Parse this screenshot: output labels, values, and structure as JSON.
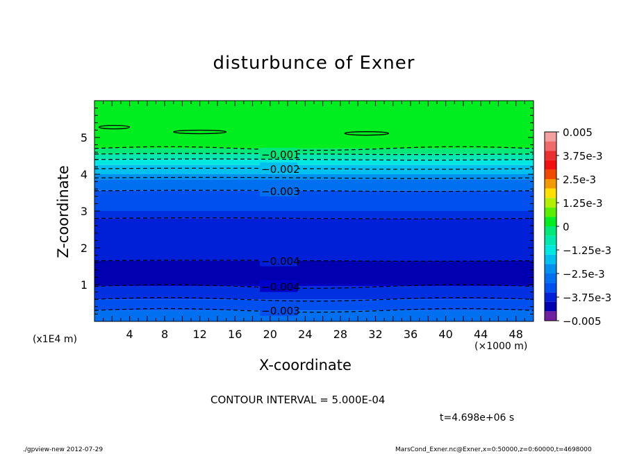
{
  "chart_data": {
    "type": "heatmap",
    "title": "disturbunce of Exner",
    "xlabel": "X-coordinate",
    "ylabel": "Z-coordinate",
    "x_unit": "(×1000 m)",
    "y_unit": "(x1E4 m)",
    "x_ticks": [
      "4",
      "8",
      "12",
      "16",
      "20",
      "24",
      "28",
      "32",
      "36",
      "40",
      "44",
      "48"
    ],
    "y_ticks": [
      "1",
      "2",
      "3",
      "4",
      "5"
    ],
    "xlim": [
      0,
      50
    ],
    "ylim": [
      0,
      6
    ],
    "colorbar": {
      "labels": [
        "0.005",
        "3.75e-3",
        "2.5e-3",
        "1.25e-3",
        "0",
        "−1.25e-3",
        "−2.5e-3",
        "−3.75e-3",
        "−0.005"
      ],
      "range": [
        -0.005,
        0.005
      ],
      "levels": [
        {
          "lo": 0.0045,
          "hi": 0.005,
          "color": "#f4a0a0"
        },
        {
          "lo": 0.004,
          "hi": 0.0045,
          "color": "#f06a6a"
        },
        {
          "lo": 0.0035,
          "hi": 0.004,
          "color": "#e83030"
        },
        {
          "lo": 0.003,
          "hi": 0.0035,
          "color": "#f01010"
        },
        {
          "lo": 0.0025,
          "hi": 0.003,
          "color": "#f04a00"
        },
        {
          "lo": 0.002,
          "hi": 0.0025,
          "color": "#f29a00"
        },
        {
          "lo": 0.0015,
          "hi": 0.002,
          "color": "#ffe000"
        },
        {
          "lo": 0.001,
          "hi": 0.0015,
          "color": "#b4ee00"
        },
        {
          "lo": 0.0005,
          "hi": 0.001,
          "color": "#5aee00"
        },
        {
          "lo": 0.0,
          "hi": 0.0005,
          "color": "#00ee20"
        },
        {
          "lo": -0.0005,
          "hi": 0.0,
          "color": "#00e878"
        },
        {
          "lo": -0.001,
          "hi": -0.0005,
          "color": "#00e8b0"
        },
        {
          "lo": -0.0015,
          "hi": -0.001,
          "color": "#00e8e0"
        },
        {
          "lo": -0.002,
          "hi": -0.0015,
          "color": "#00c0f0"
        },
        {
          "lo": -0.0025,
          "hi": -0.002,
          "color": "#0090f0"
        },
        {
          "lo": -0.003,
          "hi": -0.0025,
          "color": "#0070f0"
        },
        {
          "lo": -0.0035,
          "hi": -0.003,
          "color": "#0050f0"
        },
        {
          "lo": -0.004,
          "hi": -0.0035,
          "color": "#0020d8"
        },
        {
          "lo": -0.0045,
          "hi": -0.004,
          "color": "#0000b0"
        },
        {
          "lo": -0.005,
          "hi": -0.0045,
          "color": "#7020a0"
        }
      ]
    },
    "bands": [
      {
        "z0": 4.7,
        "z1": 6.0,
        "color": "#00ee20"
      },
      {
        "z0": 4.55,
        "z1": 4.7,
        "color": "#00e878"
      },
      {
        "z0": 4.4,
        "z1": 4.55,
        "color": "#00e8b0"
      },
      {
        "z0": 4.25,
        "z1": 4.4,
        "color": "#00e8e0"
      },
      {
        "z0": 4.0,
        "z1": 4.25,
        "color": "#00c0f0"
      },
      {
        "z0": 3.85,
        "z1": 4.0,
        "color": "#0090f0"
      },
      {
        "z0": 3.55,
        "z1": 3.85,
        "color": "#0070f0"
      },
      {
        "z0": 3.0,
        "z1": 3.55,
        "color": "#0050f0"
      },
      {
        "z0": 2.8,
        "z1": 3.0,
        "color": "#0030e0"
      },
      {
        "z0": 1.65,
        "z1": 2.8,
        "color": "#0020d8"
      },
      {
        "z0": 1.0,
        "z1": 1.65,
        "color": "#0000b0"
      },
      {
        "z0": 0.95,
        "z1": 1.0,
        "color": "#0000c8"
      },
      {
        "z0": 0.6,
        "z1": 0.95,
        "color": "#0030e0"
      },
      {
        "z0": 0.3,
        "z1": 0.6,
        "color": "#0050f0"
      },
      {
        "z0": 0.0,
        "z1": 0.3,
        "color": "#0070f0"
      }
    ],
    "contour_lines": [
      {
        "z": 4.7,
        "label": "",
        "label_x": null
      },
      {
        "z": 4.55,
        "label": "−0.001",
        "label_x": 19
      },
      {
        "z": 4.4,
        "label": "",
        "label_x": null
      },
      {
        "z": 4.15,
        "label": "−0.002",
        "label_x": 19
      },
      {
        "z": 3.9,
        "label": "",
        "label_x": null
      },
      {
        "z": 3.55,
        "label": "−0.003",
        "label_x": 19
      },
      {
        "z": 2.8,
        "label": "",
        "label_x": null
      },
      {
        "z": 1.65,
        "label": "−0.004",
        "label_x": 19
      },
      {
        "z": 0.95,
        "label": "−0.004",
        "label_x": 19
      },
      {
        "z": 0.6,
        "label": "",
        "label_x": null
      },
      {
        "z": 0.3,
        "label": "−0.003",
        "label_x": 19
      }
    ],
    "positive_cells": [
      {
        "x0": 0.5,
        "x1": 4.0,
        "z": 5.28
      },
      {
        "x0": 9.0,
        "x1": 15.0,
        "z": 5.15
      },
      {
        "x0": 28.5,
        "x1": 33.5,
        "z": 5.11
      }
    ]
  },
  "annotations": {
    "contour_interval": "CONTOUR INTERVAL = 5.000E-04",
    "time": "t=4.698e+06 s",
    "footer_left": "./gpview-new  2012-07-29",
    "footer_right": "MarsCond_Exner.nc@Exner,x=0:50000,z=0:60000,t=4698000"
  }
}
